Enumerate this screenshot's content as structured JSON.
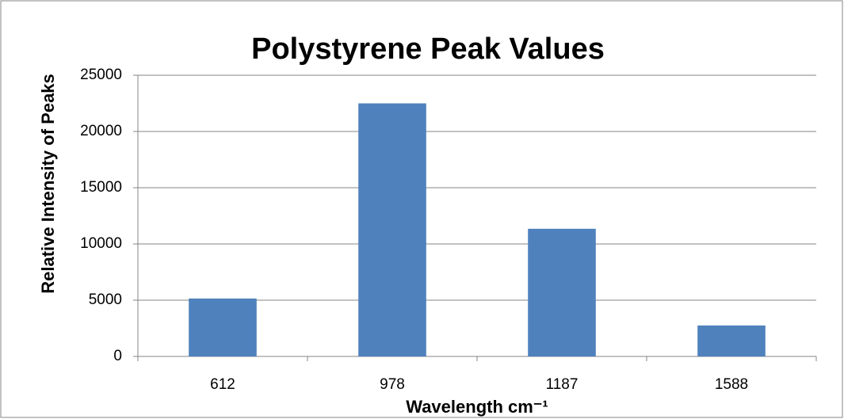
{
  "chart_data": {
    "type": "bar",
    "title": "Polystyrene Peak Values",
    "x_label": "Wavelength cm⁻¹",
    "y_label": "Relative Intensity of Peaks",
    "categories": [
      "612",
      "978",
      "1187",
      "1588"
    ],
    "values": [
      5150,
      22500,
      11350,
      2750
    ],
    "color": "#4f81bd",
    "ylim": [
      0,
      25000
    ],
    "yticks": [
      0,
      5000,
      10000,
      15000,
      20000,
      25000
    ],
    "grid": true
  }
}
